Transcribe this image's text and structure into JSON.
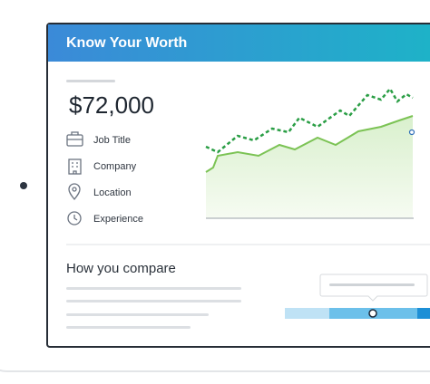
{
  "header": {
    "title": "Know Your Worth"
  },
  "salary": "$72,000",
  "fields": [
    "Job Title",
    "Company",
    "Location",
    "Experience"
  ],
  "compare": {
    "title": "How you compare"
  }
}
